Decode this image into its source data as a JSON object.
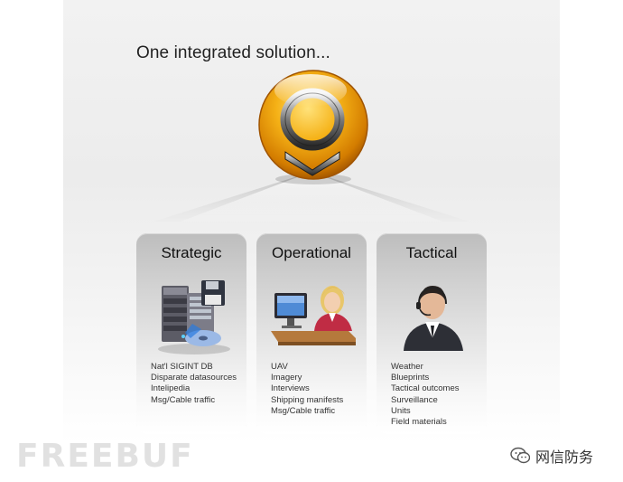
{
  "headline": "One integrated solution...",
  "cards": [
    {
      "title": "Strategic",
      "items": [
        "Nat'l SIGINT DB",
        "Disparate datasources",
        "Intelipedia",
        "Msg/Cable traffic"
      ]
    },
    {
      "title": "Operational",
      "items": [
        "UAV",
        "Imagery",
        "Interviews",
        "Shipping manifests",
        "Msg/Cable traffic"
      ]
    },
    {
      "title": "Tactical",
      "items": [
        "Weather",
        "Blueprints",
        "Tactical outcomes",
        "Surveillance",
        "Units",
        "Field materials"
      ]
    }
  ],
  "watermark": {
    "left": "FREEBUF",
    "right": "网信防务"
  },
  "colors": {
    "orb": "#f2a40c",
    "orb_dark": "#c46d00",
    "card_top": "#bdbdbd",
    "text": "#222222"
  },
  "icons": [
    "logo-orb-icon",
    "server-icon",
    "operator-icon",
    "officer-icon",
    "wechat-icon"
  ]
}
